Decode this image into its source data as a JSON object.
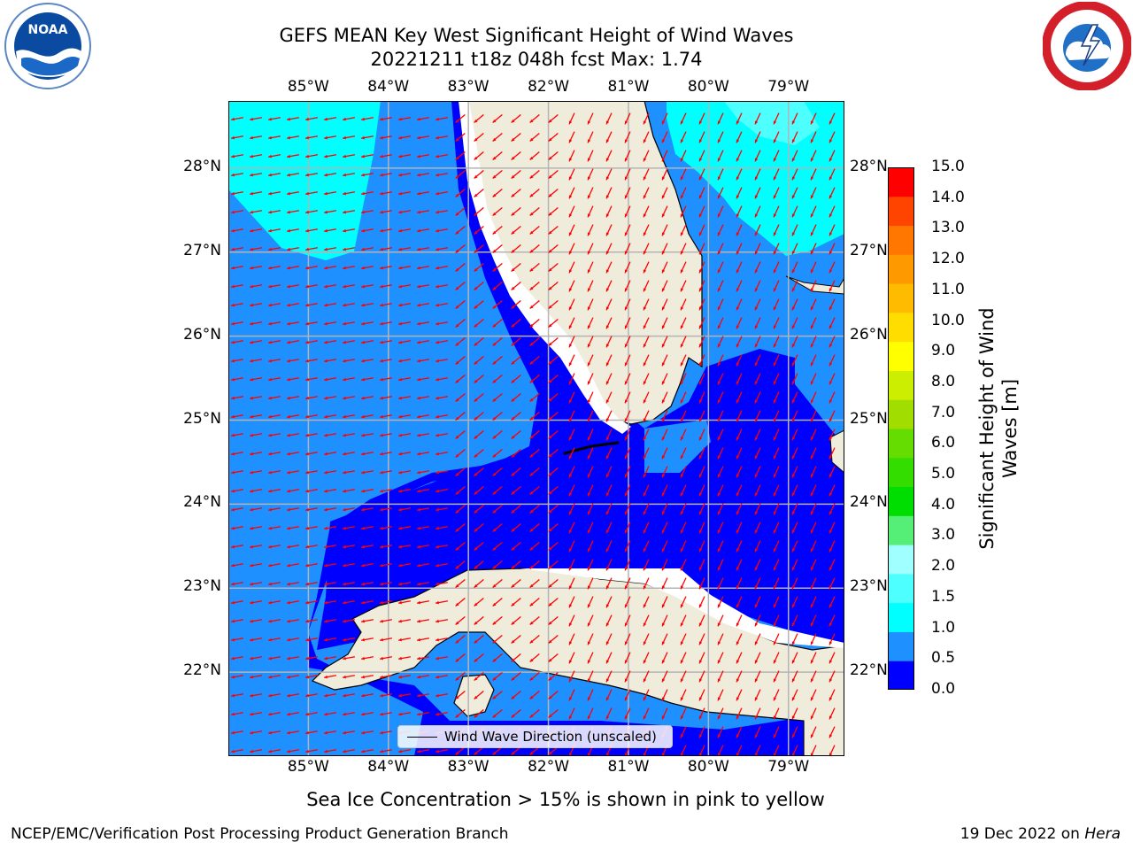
{
  "title": {
    "line1": "GEFS MEAN Key West Significant Height of Wind Waves",
    "line2": "20221211 t18z 048h fcst   Max: 1.74"
  },
  "map": {
    "lon_ticks": [
      "85°W",
      "84°W",
      "83°W",
      "82°W",
      "81°W",
      "80°W",
      "79°W"
    ],
    "lat_ticks": [
      "28°N",
      "27°N",
      "26°N",
      "25°N",
      "24°N",
      "23°N",
      "22°N"
    ],
    "lon_values": [
      -85,
      -84,
      -83,
      -82,
      -81,
      -80,
      -79
    ],
    "lat_values": [
      28,
      27,
      26,
      25,
      24,
      23,
      22
    ],
    "lon_range": [
      -86.0,
      -78.3
    ],
    "lat_range": [
      21.0,
      28.8
    ],
    "legend_label": "Wind Wave Direction (unscaled)",
    "colors": {
      "land": "#efecdc",
      "coast": "#000000",
      "grid": "#b4b4b4",
      "arrow": "#ff0000",
      "band_0_0_5": "#0000ff",
      "band_0_5_1_0": "#1e90ff",
      "band_1_0_1_5": "#00ffff",
      "band_1_5_2_0": "#4dffff"
    }
  },
  "colorbar": {
    "label_line1": "Significant Height of Wind",
    "label_line2": "Waves [m]",
    "ticks": [
      "15.0",
      "14.0",
      "13.0",
      "12.0",
      "11.0",
      "10.0",
      "9.0",
      "8.0",
      "7.0",
      "6.0",
      "5.0",
      "4.0",
      "3.0",
      "2.0",
      "1.5",
      "1.0",
      "0.5",
      "0.0"
    ],
    "colors": [
      "#0000ff",
      "#1e90ff",
      "#00ffff",
      "#4dffff",
      "#a0ffff",
      "#55ee77",
      "#00dd00",
      "#33dd00",
      "#66dd00",
      "#a2dd00",
      "#ccee00",
      "#ffff00",
      "#ffdd00",
      "#ffbb00",
      "#ff9900",
      "#ff7700",
      "#ff4400",
      "#ff0000"
    ]
  },
  "ice_note": "Sea Ice Concentration > 15% is shown in pink to yellow",
  "footer": {
    "left": "NCEP/EMC/Verification Post Processing Product Generation Branch",
    "date": "19 Dec 2022 on ",
    "host": "Hera"
  }
}
